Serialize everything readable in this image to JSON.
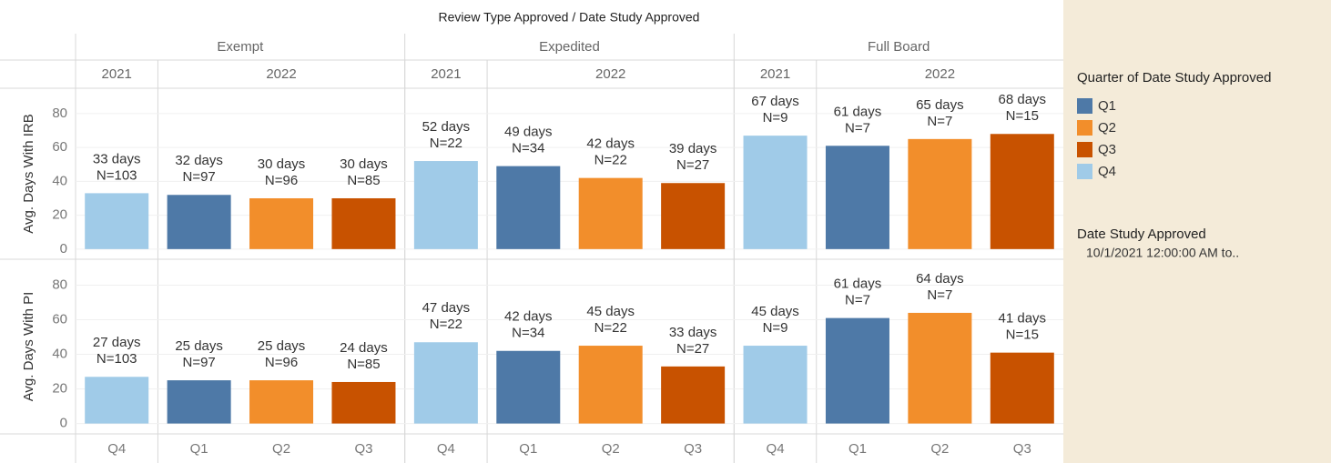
{
  "chart_data": {
    "type": "bar",
    "title": "Review Type Approved / Date Study Approved",
    "groups": [
      {
        "name": "Exempt",
        "years": [
          {
            "name": "2021",
            "quarters": [
              "Q4"
            ]
          },
          {
            "name": "2022",
            "quarters": [
              "Q1",
              "Q2",
              "Q3"
            ]
          }
        ]
      },
      {
        "name": "Expedited",
        "years": [
          {
            "name": "2021",
            "quarters": [
              "Q4"
            ]
          },
          {
            "name": "2022",
            "quarters": [
              "Q1",
              "Q2",
              "Q3"
            ]
          }
        ]
      },
      {
        "name": "Full Board",
        "years": [
          {
            "name": "2021",
            "quarters": [
              "Q4"
            ]
          },
          {
            "name": "2022",
            "quarters": [
              "Q1",
              "Q2",
              "Q3"
            ]
          }
        ]
      }
    ],
    "panels": [
      {
        "ylabel": "Avg. Days With IRB",
        "values": [
          33,
          32,
          30,
          30,
          52,
          49,
          42,
          39,
          67,
          61,
          65,
          68
        ],
        "value_labels": [
          "33 days",
          "32 days",
          "30 days",
          "30 days",
          "52 days",
          "49 days",
          "42 days",
          "39 days",
          "67 days",
          "61 days",
          "65 days",
          "68 days"
        ],
        "n_labels": [
          "N=103",
          "N=97",
          "N=96",
          "N=85",
          "N=22",
          "N=34",
          "N=22",
          "N=27",
          "N=9",
          "N=7",
          "N=7",
          "N=15"
        ]
      },
      {
        "ylabel": "Avg. Days With PI",
        "values": [
          27,
          25,
          25,
          24,
          47,
          42,
          45,
          33,
          45,
          61,
          64,
          41
        ],
        "value_labels": [
          "27 days",
          "25 days",
          "25 days",
          "24 days",
          "47 days",
          "42 days",
          "45 days",
          "33 days",
          "45 days",
          "61 days",
          "64 days",
          "41 days"
        ],
        "n_labels": [
          "N=103",
          "N=97",
          "N=96",
          "N=85",
          "N=22",
          "N=34",
          "N=22",
          "N=27",
          "N=9",
          "N=7",
          "N=7",
          "N=15"
        ]
      }
    ],
    "ylim": [
      -6,
      95
    ],
    "yticks": [
      0,
      20,
      40,
      60,
      80
    ],
    "grid": true,
    "legend": {
      "title": "Quarter of Date Study Approved",
      "series": [
        {
          "name": "Q1",
          "color": "#4e79a7"
        },
        {
          "name": "Q2",
          "color": "#f28e2b"
        },
        {
          "name": "Q3",
          "color": "#c85200"
        },
        {
          "name": "Q4",
          "color": "#a0cbe8"
        }
      ]
    },
    "filter": {
      "title": "Date Study Approved",
      "value": "10/1/2021 12:00:00 AM to.."
    }
  }
}
